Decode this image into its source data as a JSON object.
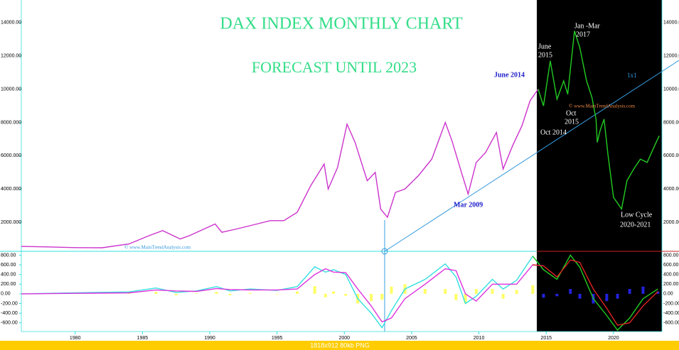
{
  "chart_data": [
    {
      "type": "line",
      "title": "DAX  INDEX  MONTHLY CHART",
      "subtitle": "FORECAST UNTIL 2023",
      "xlim": [
        1976,
        2023.6
      ],
      "xticks": [
        1980,
        1985,
        1990,
        1995,
        2000,
        2005,
        2010,
        2015,
        2020
      ],
      "ylim": [
        300,
        15360
      ],
      "yticks": [
        {
          "value": 2000,
          "label": "2000.000"
        },
        {
          "value": 4000,
          "label": "4000.000"
        },
        {
          "value": 6000,
          "label": "6000.000"
        },
        {
          "value": 8000,
          "label": "8000.000"
        },
        {
          "value": 10000,
          "label": "10000.00"
        },
        {
          "value": 12000,
          "label": "12000.00"
        },
        {
          "value": 14000,
          "label": "14000.00"
        }
      ],
      "forecast_start": 2014.05,
      "x": [
        1976,
        1978,
        1980,
        1982,
        1984,
        1985.5,
        1986.5,
        1987.8,
        1988.5,
        1990.4,
        1990.9,
        1992,
        1993.5,
        1994.5,
        1995.5,
        1996.5,
        1997.5,
        1998.5,
        1998.8,
        1999.5,
        2000.2,
        2000.8,
        2001.7,
        2002.3,
        2002.7,
        2003.2,
        2003.8,
        2004.5,
        2005.5,
        2006.5,
        2007.5,
        2008.0,
        2008.7,
        2009.2,
        2009.8,
        2010.5,
        2011.3,
        2011.8,
        2012.5,
        2013.2,
        2013.8,
        2014.4,
        2014.8,
        2015.3,
        2015.8,
        2016.3,
        2016.6,
        2017.1,
        2017.5,
        2018.0,
        2018.4,
        2018.7,
        2018.8,
        2019.0,
        2019.3,
        2019.6,
        2020.0,
        2020.6,
        2021.0,
        2021.5,
        2022.0,
        2022.5,
        2023.0,
        2023.4
      ],
      "series": [
        {
          "color": "#cc33cc",
          "values": [
            550,
            520,
            480,
            470,
            700,
            1200,
            1500,
            1000,
            1200,
            1900,
            1400,
            1600,
            1900,
            2100,
            2100,
            2600,
            4200,
            5500,
            4000,
            5300,
            7900,
            6800,
            4500,
            5000,
            2800,
            2300,
            3800,
            4000,
            4800,
            5800,
            8000,
            6900,
            5000,
            3700,
            5600,
            6200,
            7400,
            5200,
            6600,
            7800,
            9300,
            10000,
            null,
            null,
            null,
            null,
            null,
            null,
            null,
            null,
            null,
            null,
            null,
            null,
            null,
            null,
            null,
            null,
            null,
            null,
            null,
            null,
            null,
            null
          ]
        },
        {
          "color": "#22cc22",
          "values": [
            null,
            null,
            null,
            null,
            null,
            null,
            null,
            null,
            null,
            null,
            null,
            null,
            null,
            null,
            null,
            null,
            null,
            null,
            null,
            null,
            null,
            null,
            null,
            null,
            null,
            null,
            null,
            null,
            null,
            null,
            null,
            null,
            null,
            null,
            null,
            null,
            null,
            null,
            null,
            null,
            null,
            10000,
            9000,
            11700,
            9400,
            10500,
            9700,
            13500,
            12500,
            10500,
            9500,
            8200,
            6800,
            7500,
            8200,
            6000,
            3500,
            2800,
            4500,
            5200,
            5800,
            5600,
            6500,
            7200
          ]
        }
      ],
      "annotations": [
        [
          "June 2014"
        ],
        [
          "Mar 2009"
        ],
        [
          "June",
          "2015"
        ],
        [
          "Oct 2014"
        ],
        [
          "Oct",
          "2015"
        ],
        [
          "Jan -Mar",
          "2017"
        ],
        [
          "Low Cycle",
          "2020-2021"
        ],
        [
          "1x1"
        ],
        [
          "© www.MainTrendAnalysis.com"
        ],
        [
          "© www.MainTrendAnalysis.com"
        ]
      ]
    },
    {
      "type": "oscillator",
      "xlim": [
        1976,
        2023.6
      ],
      "ylim": [
        -780,
        865
      ],
      "yticks": [
        {
          "value": 800,
          "label": "800.00"
        },
        {
          "value": 600,
          "label": "600.00"
        },
        {
          "value": 400,
          "label": "400.00"
        },
        {
          "value": 200,
          "label": "200.00"
        },
        {
          "value": 0,
          "label": "0.00"
        },
        {
          "value": -200,
          "label": "-200.00"
        },
        {
          "value": -400,
          "label": "-400.00"
        },
        {
          "value": -600,
          "label": "-600.00"
        }
      ],
      "forecast_start": 2014.05,
      "x": [
        1976,
        1980,
        1984,
        1986,
        1987.5,
        1989,
        1990.5,
        1991.5,
        1993,
        1995,
        1996.5,
        1997.8,
        1998.6,
        1999.2,
        2000.1,
        2001,
        2002,
        2002.8,
        2003.5,
        2004.5,
        2006,
        2007.5,
        2008.3,
        2009,
        2009.8,
        2011,
        2011.8,
        2012.8,
        2014,
        2014.8,
        2015.8,
        2016.8,
        2017.5,
        2018.5,
        2019.5,
        2020.3,
        2021.2,
        2022.2,
        2023.3
      ],
      "series": [
        {
          "color": "#33e0e0",
          "forecast_color": "#22cc22",
          "values": [
            0,
            20,
            40,
            120,
            30,
            60,
            150,
            60,
            100,
            70,
            150,
            560,
            450,
            500,
            400,
            -100,
            -400,
            -700,
            -350,
            100,
            300,
            620,
            350,
            -200,
            -50,
            300,
            100,
            280,
            780,
            500,
            300,
            800,
            550,
            -100,
            -450,
            -750,
            -500,
            -100,
            100
          ]
        },
        {
          "color": "#dd33dd",
          "forecast_color": "#dd2222",
          "values": [
            0,
            10,
            20,
            80,
            60,
            50,
            110,
            90,
            80,
            80,
            100,
            400,
            520,
            450,
            440,
            100,
            -250,
            -580,
            -500,
            -100,
            200,
            520,
            480,
            0,
            -150,
            200,
            200,
            200,
            600,
            580,
            350,
            700,
            650,
            100,
            -300,
            -650,
            -600,
            -250,
            50
          ]
        }
      ],
      "histogram": {
        "color": "#ffff66",
        "forecast_color": "#2222dd",
        "values": [
          0,
          10,
          20,
          40,
          -30,
          10,
          40,
          -30,
          20,
          -10,
          50,
          160,
          -70,
          50,
          -40,
          -200,
          -150,
          -120,
          150,
          200,
          100,
          100,
          -130,
          -200,
          100,
          100,
          -100,
          80,
          180,
          -80,
          -50,
          100,
          -100,
          -200,
          -150,
          -100,
          100,
          150,
          50
        ]
      }
    }
  ],
  "footer": "1818x912 80kb PNG"
}
